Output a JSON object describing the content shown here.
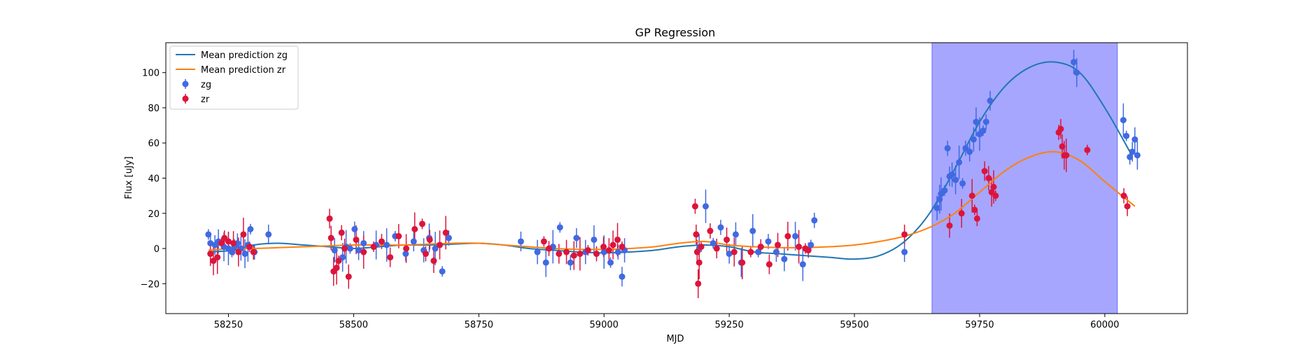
{
  "chart_data": {
    "type": "scatter",
    "title": "GP Regression",
    "xlabel": "MJD",
    "ylabel": "Flux [uJy]",
    "xlim": [
      58125,
      60165
    ],
    "ylim": [
      -37,
      117
    ],
    "xticks": [
      58250,
      58500,
      58750,
      59000,
      59250,
      59500,
      59750,
      60000
    ],
    "yticks": [
      -20,
      0,
      20,
      40,
      60,
      80,
      100
    ],
    "grid": false,
    "legend_position": "top-left",
    "shaded_region": {
      "x0": 59655,
      "x1": 60025,
      "color": "#a6a6ff"
    },
    "lines": [
      {
        "name": "Mean prediction zg",
        "color": "#1f77b4",
        "x": [
          58210,
          58260,
          58300,
          58350,
          58400,
          58450,
          58500,
          58550,
          58600,
          58650,
          58700,
          58750,
          58800,
          58850,
          58900,
          58950,
          59000,
          59050,
          59100,
          59150,
          59200,
          59250,
          59300,
          59350,
          59400,
          59450,
          59500,
          59550,
          59600,
          59650,
          59700,
          59750,
          59800,
          59850,
          59900,
          59950,
          60000,
          60050
        ],
        "y": [
          -2,
          -1,
          2,
          3,
          2,
          1,
          0,
          1,
          2,
          2,
          2.5,
          3,
          2,
          0,
          -1,
          -2,
          -2.5,
          -2,
          -1,
          1,
          2,
          1,
          -2,
          -3,
          -4,
          -5,
          -6,
          -4,
          4,
          20,
          45,
          72,
          92,
          103,
          106,
          100,
          80,
          55
        ]
      },
      {
        "name": "Mean prediction zr",
        "color": "#ff7f0e",
        "x": [
          58210,
          58260,
          58300,
          58350,
          58400,
          58450,
          58500,
          58550,
          58600,
          58650,
          58700,
          58750,
          58800,
          58850,
          58900,
          58950,
          59000,
          59050,
          59100,
          59150,
          59200,
          59250,
          59300,
          59350,
          59400,
          59450,
          59500,
          59550,
          59600,
          59650,
          59700,
          59750,
          59800,
          59850,
          59900,
          59950,
          60000,
          60060
        ],
        "y": [
          -1,
          0,
          0,
          0.5,
          1,
          1.5,
          2,
          2,
          2,
          2.5,
          3,
          3,
          2,
          1,
          0,
          -0.5,
          -0.5,
          0,
          1,
          3,
          4,
          2,
          1,
          0.5,
          0.5,
          1,
          2,
          4,
          7,
          12,
          20,
          32,
          44,
          52,
          55,
          50,
          38,
          24
        ]
      }
    ],
    "series": [
      {
        "name": "zg",
        "color": "#4169e1",
        "x": [
          58210,
          58214,
          58223,
          58230,
          58241,
          58250,
          58257,
          58262,
          58268,
          58275,
          58283,
          58289,
          58294,
          58302,
          58330,
          58462,
          58478,
          58485,
          58493,
          58502,
          58510,
          58520,
          58545,
          58566,
          58583,
          58604,
          58620,
          58640,
          58651,
          58663,
          58677,
          58690,
          58834,
          58867,
          58884,
          58898,
          58912,
          58933,
          58945,
          58963,
          58980,
          59000,
          59013,
          59028,
          59036,
          59041,
          59190,
          59203,
          59218,
          59233,
          59250,
          59263,
          59274,
          59297,
          59308,
          59328,
          59344,
          59360,
          59382,
          59397,
          59413,
          59420,
          59600,
          59665,
          59670,
          59673,
          59680,
          59686,
          59690,
          59695,
          59702,
          59709,
          59716,
          59722,
          59730,
          59738,
          59743,
          59750,
          59757,
          59763,
          59771,
          59938,
          59944,
          60037,
          60043,
          60050,
          60055,
          60060,
          60065
        ],
        "y": [
          8,
          3,
          2,
          4,
          1,
          0,
          -2,
          1,
          3,
          0,
          -3,
          2,
          11,
          -2,
          8,
          -1,
          -5,
          1,
          0,
          11,
          -1,
          3,
          2,
          2,
          7,
          -3,
          4,
          -1,
          6,
          0,
          -13,
          6,
          4,
          -2,
          -8,
          1,
          12,
          -8,
          6,
          -2,
          5,
          -2,
          -8,
          -2,
          -16,
          -1,
          0,
          24,
          3,
          12,
          -3,
          8,
          -8,
          10,
          -2,
          4,
          -2,
          -6,
          7,
          -9,
          2,
          16,
          -2,
          23,
          28,
          31,
          33,
          57,
          41,
          42,
          39,
          49,
          37,
          57,
          55,
          62,
          72,
          65,
          67,
          72,
          84,
          106,
          100,
          73,
          64,
          52,
          55,
          62,
          53
        ]
      },
      {
        "name": "zr",
        "color": "#dc143c",
        "x": [
          58214,
          58220,
          58228,
          58236,
          58242,
          58250,
          58260,
          58270,
          58280,
          58292,
          58300,
          58452,
          58455,
          58460,
          58466,
          58470,
          58476,
          58482,
          58490,
          58505,
          58520,
          58540,
          58556,
          58573,
          58590,
          58605,
          58622,
          58637,
          58644,
          58652,
          58660,
          58672,
          58684,
          58880,
          58890,
          58910,
          58925,
          58940,
          58952,
          58968,
          58985,
          58999,
          59010,
          59018,
          59027,
          59036,
          59182,
          59184,
          59186,
          59188,
          59190,
          59194,
          59212,
          59225,
          59245,
          59260,
          59276,
          59293,
          59313,
          59330,
          59347,
          59367,
          59389,
          59402,
          59408,
          59600,
          59690,
          59714,
          59735,
          59740,
          59745,
          59760,
          59768,
          59774,
          59778,
          59782,
          59908,
          59912,
          59915,
          59919,
          59923,
          59965,
          60038,
          60045
        ],
        "y": [
          -3,
          -7,
          -5,
          3,
          6,
          4,
          3,
          -2,
          8,
          1,
          -2,
          17,
          6,
          -13,
          -11,
          -7,
          9,
          0,
          -16,
          5,
          -2,
          1,
          4,
          -5,
          7,
          0,
          11,
          14,
          -3,
          5,
          -7,
          2,
          9,
          4,
          0,
          -3,
          -2,
          -4,
          -3,
          -1,
          -3,
          1,
          -1,
          2,
          5,
          1,
          24,
          8,
          -2,
          -20,
          -8,
          1,
          10,
          0,
          5,
          -2,
          -8,
          -2,
          1,
          -9,
          2,
          7,
          1,
          0,
          -1,
          8,
          13,
          20,
          30,
          22,
          17,
          44,
          40,
          32,
          35,
          30,
          66,
          68,
          58,
          53,
          53,
          56,
          30,
          24
        ]
      }
    ]
  }
}
